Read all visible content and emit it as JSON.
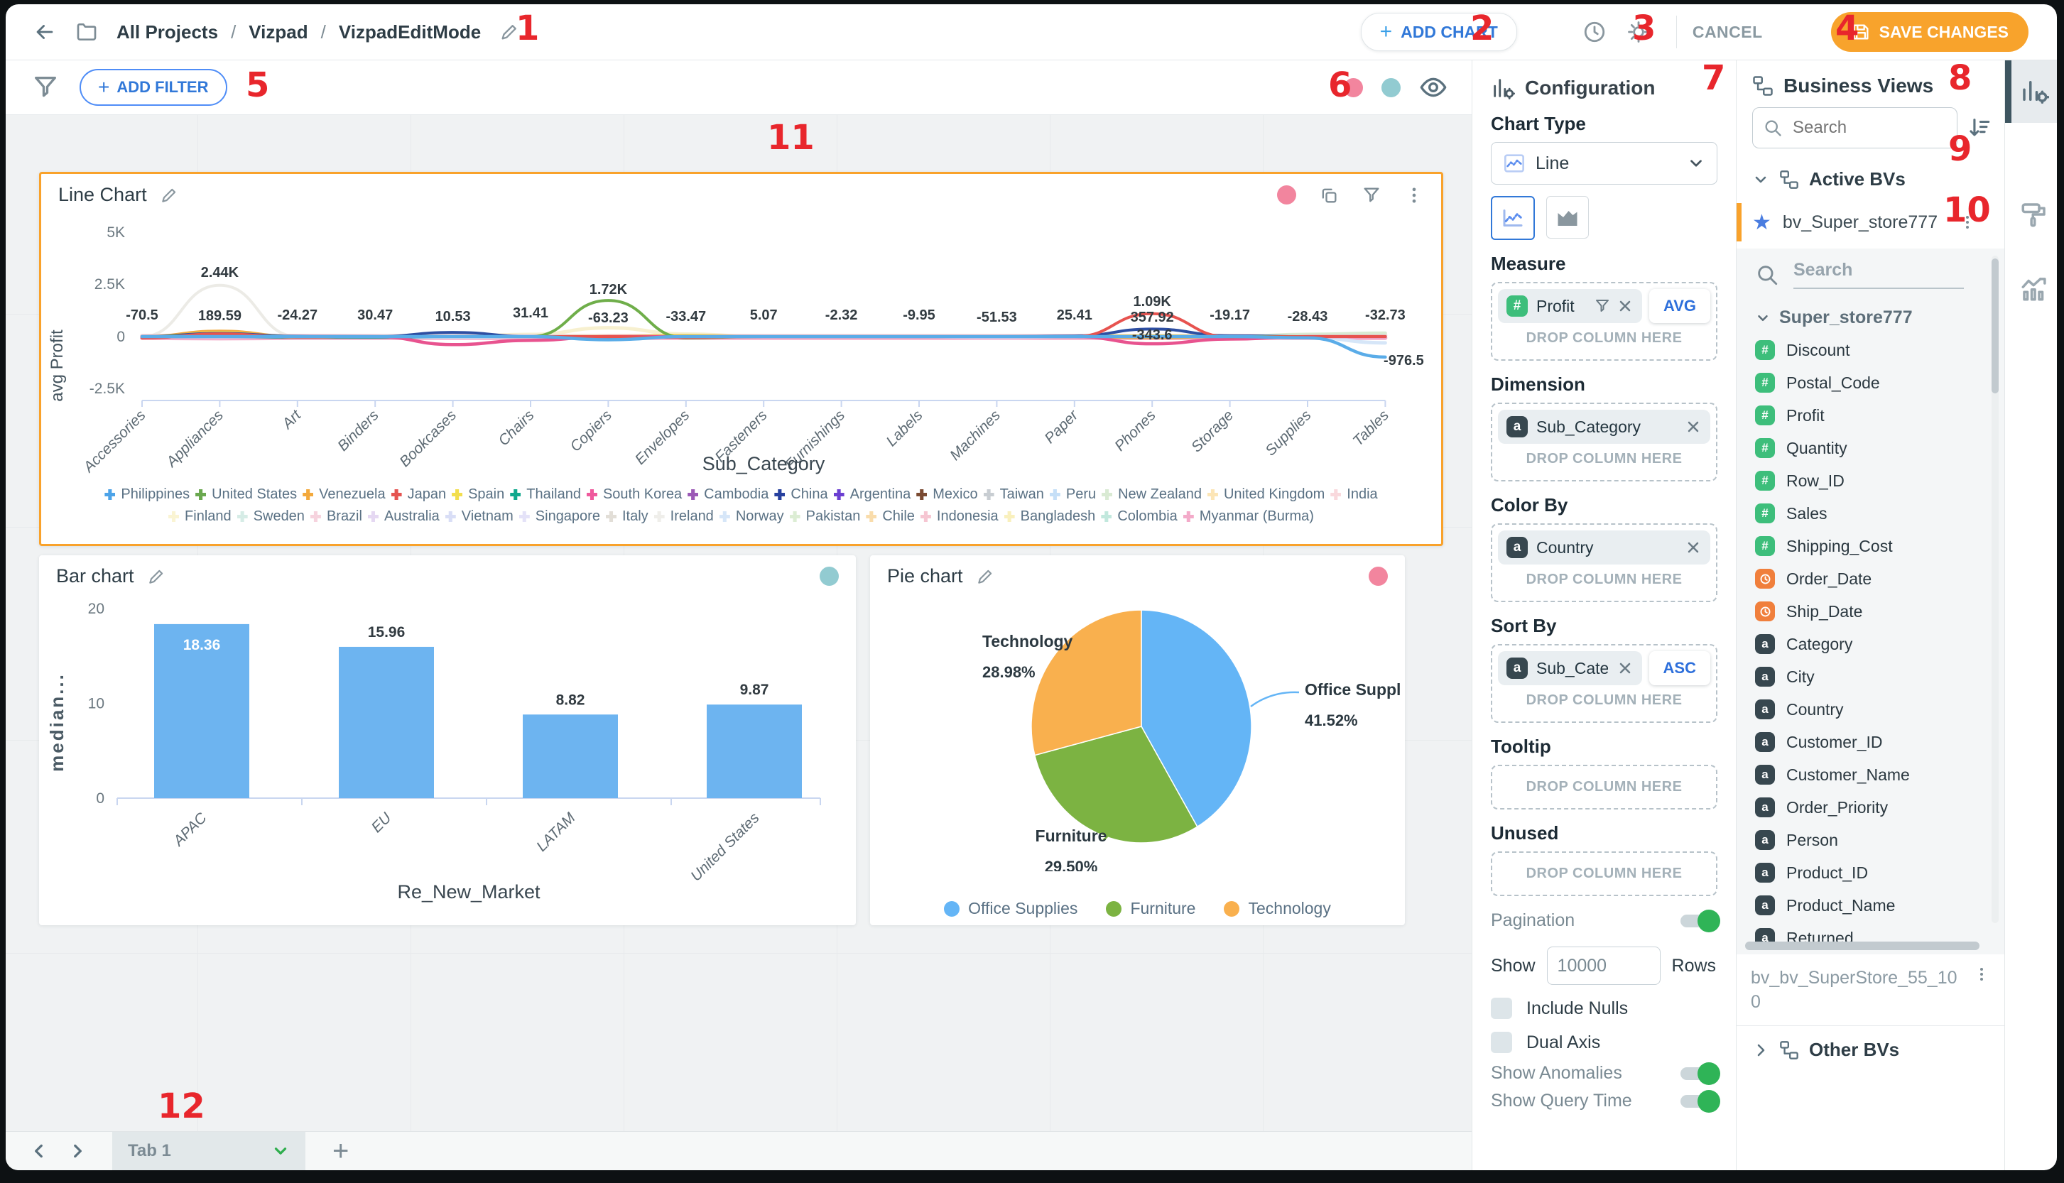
{
  "header": {
    "breadcrumb": [
      "All Projects",
      "Vizpad",
      "VizpadEditMode"
    ],
    "add_chart_label": "ADD CHART",
    "cancel_label": "CANCEL",
    "save_label": "SAVE CHANGES"
  },
  "filterbar": {
    "add_filter_label": "ADD FILTER"
  },
  "annotations": [
    "1",
    "2",
    "3",
    "4",
    "5",
    "6",
    "7",
    "8",
    "9",
    "10",
    "11",
    "12"
  ],
  "icons": {
    "star": "★",
    "kebab": "⋮",
    "plus": "+",
    "breadcrumb_sep": "/",
    "named": [
      "back-arrow-icon",
      "folder-icon",
      "pencil-icon",
      "clock-icon",
      "gear-icon",
      "save-icon",
      "filter-funnel-icon",
      "eye-icon",
      "copy-icon",
      "kebab-menu-icon",
      "search-icon",
      "sort-icon",
      "hierarchy-icon",
      "chart-config-icon",
      "paint-roller-icon",
      "trend-chart-icon"
    ]
  },
  "chart_data": [
    {
      "type": "line",
      "title": "Line Chart",
      "xlabel": "Sub_Category",
      "ylabel": "avg Profit",
      "ylim": [
        -2500,
        5000
      ],
      "yticks": [
        "5K",
        "2.5K",
        "0",
        "-2.5K"
      ],
      "grid": false,
      "legend_position": "bottom",
      "categories": [
        "Accessories",
        "Appliances",
        "Art",
        "Binders",
        "Bookcases",
        "Chairs",
        "Copiers",
        "Envelopes",
        "Fasteners",
        "Furnishings",
        "Labels",
        "Machines",
        "Paper",
        "Phones",
        "Storage",
        "Supplies",
        "Tables"
      ],
      "point_labels": [
        {
          "i": 0,
          "text": "-70.5",
          "value": -70.5,
          "ly": 160
        },
        {
          "i": 1,
          "text": "189.59",
          "value": 189.59,
          "ly": 161
        },
        {
          "i": 1,
          "text": "2.44K",
          "value": 2440,
          "ly": 100
        },
        {
          "i": 2,
          "text": "-24.27",
          "value": -24.27,
          "ly": 160
        },
        {
          "i": 3,
          "text": "30.47",
          "value": 30.47,
          "ly": 160
        },
        {
          "i": 4,
          "text": "10.53",
          "value": 10.53,
          "ly": 162
        },
        {
          "i": 5,
          "text": "31.41",
          "value": 31.41,
          "ly": 157
        },
        {
          "i": 6,
          "text": "1.72K",
          "value": 1720,
          "ly": 124
        },
        {
          "i": 6,
          "text": "-63.23",
          "value": -63.23,
          "ly": 164
        },
        {
          "i": 7,
          "text": "-33.47",
          "value": -33.47,
          "ly": 162
        },
        {
          "i": 8,
          "text": "5.07",
          "value": 5.07,
          "ly": 160
        },
        {
          "i": 9,
          "text": "-2.32",
          "value": -2.32,
          "ly": 160
        },
        {
          "i": 10,
          "text": "-9.95",
          "value": -9.95,
          "ly": 160
        },
        {
          "i": 11,
          "text": "-51.53",
          "value": -51.53,
          "ly": 163
        },
        {
          "i": 12,
          "text": "25.41",
          "value": 25.41,
          "ly": 160
        },
        {
          "i": 13,
          "text": "1.09K",
          "value": 1090,
          "ly": 141
        },
        {
          "i": 13,
          "text": "357.92",
          "value": 357.92,
          "ly": 163
        },
        {
          "i": 13,
          "text": "-343.6",
          "value": -343.6,
          "ly": 188
        },
        {
          "i": 14,
          "text": "-19.17",
          "value": -19.17,
          "ly": 160
        },
        {
          "i": 15,
          "text": "-28.43",
          "value": -28.43,
          "ly": 162
        },
        {
          "i": 16,
          "text": "-32.73",
          "value": -32.73,
          "ly": 160
        },
        {
          "i": 16,
          "text": "-976.5",
          "value": -976.5,
          "ly": 224,
          "dx": 26
        }
      ],
      "series": [
        {
          "name": "Philippines",
          "color": "#4da3e8"
        },
        {
          "name": "United States",
          "color": "#6aa84f"
        },
        {
          "name": "Venezuela",
          "color": "#f3a93c"
        },
        {
          "name": "Japan",
          "color": "#e55451"
        },
        {
          "name": "Spain",
          "color": "#f2de4e"
        },
        {
          "name": "Thailand",
          "color": "#0fa88c"
        },
        {
          "name": "South Korea",
          "color": "#ef5a9d"
        },
        {
          "name": "Cambodia",
          "color": "#9b59b6"
        },
        {
          "name": "China",
          "color": "#27409e"
        },
        {
          "name": "Argentina",
          "color": "#6b3fd1"
        },
        {
          "name": "Mexico",
          "color": "#7b4b32"
        },
        {
          "name": "Taiwan",
          "color": "#c8cdd2"
        },
        {
          "name": "Peru",
          "color": "#c5dff7"
        },
        {
          "name": "New Zealand",
          "color": "#d9ead3"
        },
        {
          "name": "United Kingdom",
          "color": "#fce5b6"
        },
        {
          "name": "India",
          "color": "#f9d9dd"
        },
        {
          "name": "Finland",
          "color": "#faf4d3"
        },
        {
          "name": "Sweden",
          "color": "#d6ece6"
        },
        {
          "name": "Brazil",
          "color": "#f6d3de"
        },
        {
          "name": "Australia",
          "color": "#e5d8f2"
        },
        {
          "name": "Vietnam",
          "color": "#d9def6"
        },
        {
          "name": "Singapore",
          "color": "#e4e2f8"
        },
        {
          "name": "Italy",
          "color": "#e2ded7"
        },
        {
          "name": "Ireland",
          "color": "#efeeea"
        },
        {
          "name": "Norway",
          "color": "#d6e6f8"
        },
        {
          "name": "Pakistan",
          "color": "#dcedd4"
        },
        {
          "name": "Chile",
          "color": "#f9dcab"
        },
        {
          "name": "Indonesia",
          "color": "#f6c6d2"
        },
        {
          "name": "Bangladesh",
          "color": "#f9f0bd"
        },
        {
          "name": "Colombia",
          "color": "#c2e8dd"
        },
        {
          "name": "Myanmar (Burma)",
          "color": "#f3aac9"
        }
      ],
      "drawn_series": [
        {
          "name": "Ireland",
          "color": "#ecebe6",
          "w": 4,
          "values": [
            0,
            2440,
            0,
            0,
            0,
            0,
            0,
            0,
            0,
            0,
            0,
            0,
            0,
            0,
            0,
            0,
            0
          ]
        },
        {
          "name": "Finland",
          "color": "#f7f0cf",
          "w": 5,
          "values": [
            0,
            0,
            0,
            0,
            0,
            100,
            420,
            120,
            0,
            0,
            0,
            0,
            0,
            0,
            0,
            60,
            0
          ]
        },
        {
          "name": "Myanmar (Burma)",
          "color": "#f3aac9",
          "w": 6,
          "values": [
            -60,
            -80,
            -60,
            -60,
            -60,
            -60,
            -60,
            -60,
            -60,
            -60,
            -60,
            -60,
            -60,
            -60,
            -60,
            -60,
            -60
          ]
        },
        {
          "name": "India",
          "color": "#f6d6da",
          "w": 6,
          "values": [
            30,
            40,
            30,
            25,
            25,
            25,
            25,
            25,
            25,
            25,
            25,
            25,
            25,
            25,
            25,
            25,
            60
          ]
        },
        {
          "name": "Australia",
          "color": "#e5d8f2",
          "w": 5,
          "values": [
            0,
            -20,
            0,
            0,
            -30,
            0,
            0,
            0,
            0,
            0,
            0,
            -40,
            0,
            0,
            0,
            0,
            0
          ]
        },
        {
          "name": "Norway",
          "color": "#d6e6f8",
          "w": 5,
          "values": [
            0,
            0,
            0,
            0,
            0,
            0,
            0,
            0,
            0,
            0,
            0,
            0,
            0,
            0,
            0,
            -40,
            -300
          ]
        },
        {
          "name": "New Zealand",
          "color": "#d9ead3",
          "w": 5,
          "values": [
            0,
            0,
            0,
            0,
            0,
            0,
            0,
            0,
            0,
            0,
            0,
            0,
            0,
            0,
            0,
            100,
            160
          ]
        },
        {
          "name": "Thailand",
          "color": "#17a78e",
          "w": 4,
          "values": [
            -20,
            0,
            -40,
            -40,
            0,
            0,
            -80,
            0,
            0,
            0,
            0,
            0,
            0,
            0,
            0,
            0,
            0
          ]
        },
        {
          "name": "Venezuela",
          "color": "#f3a93c",
          "w": 4,
          "values": [
            0,
            260,
            0,
            0,
            0,
            0,
            0,
            0,
            0,
            0,
            0,
            0,
            0,
            -60,
            0,
            0,
            0
          ]
        },
        {
          "name": "Spain",
          "color": "#f2de4e",
          "w": 4,
          "values": [
            -40,
            190,
            -30,
            0,
            0,
            0,
            10,
            60,
            0,
            0,
            0,
            0,
            20,
            40,
            0,
            0,
            0
          ]
        },
        {
          "name": "China",
          "color": "#2d4ea2",
          "w": 4,
          "values": [
            0,
            150,
            20,
            0,
            200,
            0,
            0,
            0,
            0,
            0,
            0,
            0,
            30,
            358,
            40,
            0,
            0
          ]
        },
        {
          "name": "South Korea",
          "color": "#e8538f",
          "w": 4.5,
          "values": [
            0,
            0,
            0,
            0,
            -380,
            -180,
            0,
            0,
            0,
            0,
            0,
            0,
            0,
            -344,
            -120,
            0,
            0
          ]
        },
        {
          "name": "United States",
          "color": "#6fae4a",
          "w": 4,
          "values": [
            0,
            80,
            0,
            0,
            0,
            0,
            1720,
            -63,
            0,
            0,
            0,
            0,
            0,
            0,
            0,
            0,
            0
          ]
        },
        {
          "name": "Japan",
          "color": "#e7534f",
          "w": 4,
          "values": [
            -70,
            130,
            -30,
            0,
            0,
            0,
            0,
            -40,
            0,
            0,
            0,
            0,
            0,
            1090,
            -20,
            0,
            0
          ]
        },
        {
          "name": "Philippines",
          "color": "#5aace8",
          "w": 4.5,
          "values": [
            0,
            0,
            0,
            0,
            0,
            0,
            -150,
            0,
            0,
            0,
            0,
            0,
            0,
            0,
            0,
            -60,
            -976
          ]
        }
      ]
    },
    {
      "type": "bar",
      "title": "Bar chart",
      "categories": [
        "APAC",
        "EU",
        "LATAM",
        "United States"
      ],
      "values": [
        18.36,
        15.96,
        8.82,
        9.87
      ],
      "ylabel": "median...",
      "xlabel": "Re_New_Market",
      "yticks": [
        0,
        10,
        20
      ],
      "ylim": [
        0,
        20
      ],
      "bar_color": "#6db4f0",
      "grid": false
    },
    {
      "type": "pie",
      "title": "Pie chart",
      "slices": [
        {
          "label": "Office Supplies",
          "pct": 41.52,
          "color": "#64b5f6"
        },
        {
          "label": "Furniture",
          "pct": 29.5,
          "color": "#7cb342"
        },
        {
          "label": "Technology",
          "pct": 28.98,
          "color": "#f9b04e"
        }
      ],
      "legend_position": "bottom"
    }
  ],
  "config": {
    "title": "Configuration",
    "chart_type_label": "Chart Type",
    "chart_type_value": "Line",
    "measure_label": "Measure",
    "measure_chip": "Profit",
    "measure_agg": "AVG",
    "dimension_label": "Dimension",
    "dimension_chip": "Sub_Category",
    "color_by_label": "Color By",
    "color_chip": "Country",
    "sort_by_label": "Sort By",
    "sort_chip": "Sub_Category",
    "sort_dir": "ASC",
    "tooltip_label": "Tooltip",
    "unused_label": "Unused",
    "drop_label": "DROP COLUMN HERE",
    "pagination_label": "Pagination",
    "show_label": "Show",
    "rows_value": "10000",
    "rows_label": "Rows",
    "include_nulls_label": "Include Nulls",
    "dual_axis_label": "Dual Axis",
    "show_anomalies_label": "Show Anomalies",
    "show_query_time_label": "Show Query Time"
  },
  "business_views": {
    "title": "Business Views",
    "search_placeholder": "Search",
    "active_bvs_label": "Active BVs",
    "active_item": "bv_Super_store777",
    "tree_search_placeholder": "Search",
    "tree_root": "Super_store777",
    "fields": [
      {
        "name": "Discount",
        "type": "num"
      },
      {
        "name": "Postal_Code",
        "type": "num"
      },
      {
        "name": "Profit",
        "type": "num"
      },
      {
        "name": "Quantity",
        "type": "num"
      },
      {
        "name": "Row_ID",
        "type": "num"
      },
      {
        "name": "Sales",
        "type": "num"
      },
      {
        "name": "Shipping_Cost",
        "type": "num"
      },
      {
        "name": "Order_Date",
        "type": "date"
      },
      {
        "name": "Ship_Date",
        "type": "date"
      },
      {
        "name": "Category",
        "type": "text"
      },
      {
        "name": "City",
        "type": "text"
      },
      {
        "name": "Country",
        "type": "text"
      },
      {
        "name": "Customer_ID",
        "type": "text"
      },
      {
        "name": "Customer_Name",
        "type": "text"
      },
      {
        "name": "Order_Priority",
        "type": "text"
      },
      {
        "name": "Person",
        "type": "text"
      },
      {
        "name": "Product_ID",
        "type": "text"
      },
      {
        "name": "Product_Name",
        "type": "text"
      },
      {
        "name": "Returned",
        "type": "text"
      }
    ],
    "other_bv_name": "bv_bv_SuperStore_55_100",
    "other_bvs_label": "Other BVs"
  },
  "tabbar": {
    "tab_label": "Tab 1"
  }
}
